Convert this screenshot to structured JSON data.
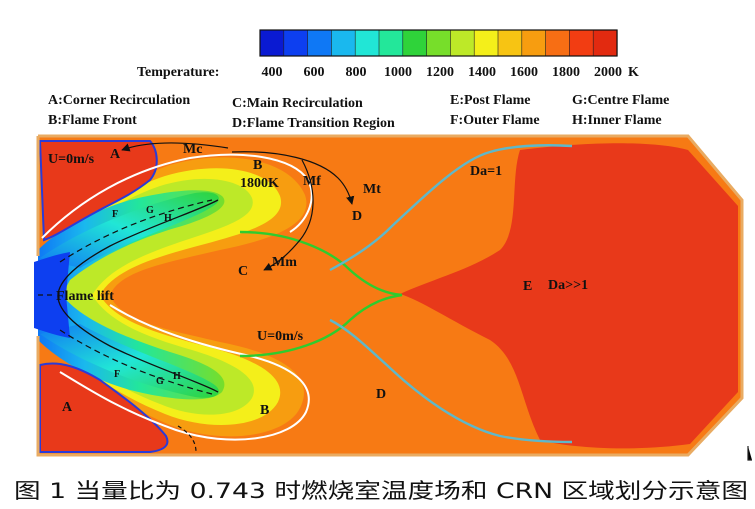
{
  "colorbar": {
    "label": "Temperature:",
    "unit": "K",
    "ticks": [
      "400",
      "600",
      "800",
      "1000",
      "1200",
      "1400",
      "1600",
      "1800",
      "2000"
    ],
    "colors": [
      "#0a1ad2",
      "#0d3ff0",
      "#0f78f5",
      "#1ab8ee",
      "#21e6d6",
      "#23e79a",
      "#2fd33a",
      "#77de2a",
      "#bde928",
      "#f4ef1a",
      "#f7c413",
      "#f79d10",
      "#f76e14",
      "#f23d12",
      "#e22a10"
    ]
  },
  "legend": {
    "A": "A:Corner Recirculation",
    "B": "B:Flame Front",
    "C": "C:Main Recirculation",
    "D": "D:Flame Transition Region",
    "E": "E:Post Flame",
    "F": "F:Outer Flame",
    "G": "G:Centre Flame",
    "H": "H:Inner Flame"
  },
  "annotations": {
    "u0_top": "U=0m/s",
    "u0_mid": "U=0m/s",
    "A_top": "A",
    "A_bottom": "A",
    "Mc": "Mc",
    "B_top": "B",
    "temp_1800": "1800K",
    "Mf": "Mf",
    "Mt": "Mt",
    "D_top": "D",
    "D_bottom": "D",
    "C": "C",
    "Mm": "Mm",
    "flame_lift": "Flame lift",
    "B_bottom": "B",
    "E": "E",
    "Da_low": "Da=1",
    "Da_high": "Da>>1",
    "F_top": "F",
    "G_top": "G",
    "H_top": "H",
    "F_bottom": "F",
    "G_bottom": "G",
    "H_bottom": "H"
  },
  "caption": "图 1  当量比为 0.743 时燃烧室温度场和 CRN 区域划分示意图",
  "field_colors": {
    "background": "#f77a14",
    "hot": "#e8391a",
    "frame": "#e9ab62"
  }
}
